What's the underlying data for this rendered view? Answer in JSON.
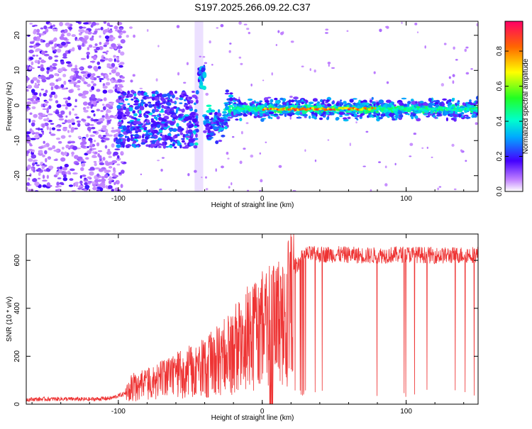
{
  "title": "S197.2025.266.09.22.C37",
  "chart_data": [
    {
      "type": "heatmap",
      "name": "spectrogram",
      "xlabel": "Height of straight line (km)",
      "ylabel": "Frequency (Hz)",
      "xlim": [
        -164,
        150
      ],
      "ylim": [
        -24.5,
        24
      ],
      "xticks": [
        -100,
        0,
        100
      ],
      "yticks": [
        -20,
        -10,
        0,
        10,
        20
      ],
      "xtick_labels": [
        "-100",
        "0",
        "100"
      ],
      "ytick_labels": [
        "-20",
        "-10",
        "0",
        "10",
        "20"
      ],
      "colorbar": {
        "label": "Normalized spectral amplitude",
        "range": [
          0,
          0.97
        ],
        "ticks": [
          0.0,
          0.2,
          0.4,
          0.6,
          0.8
        ],
        "tick_labels": [
          "0.0",
          "0.2",
          "0.4",
          "0.6",
          "0.8"
        ]
      },
      "features": {
        "noise_region_x": [
          -164,
          -100
        ],
        "band_center_hz": -1,
        "burst_x_km": -42,
        "burst_freq_hz": [
          5,
          11
        ],
        "peak_x_range_km": [
          0,
          80
        ]
      }
    },
    {
      "type": "line",
      "name": "snr",
      "xlabel": "Height of straight line (km)",
      "ylabel": "SNR (10 * v/v)",
      "xlim": [
        -164,
        150
      ],
      "ylim": [
        0,
        710
      ],
      "xticks": [
        -100,
        0,
        100
      ],
      "yticks": [
        0,
        200,
        400,
        600
      ],
      "xtick_labels": [
        "-100",
        "0",
        "100"
      ],
      "ytick_labels": [
        "0",
        "200",
        "400",
        "600"
      ],
      "color": "#ee3333",
      "series": [
        {
          "name": "SNR",
          "x": [
            -164,
            -140,
            -120,
            -105,
            -95,
            -90,
            -80,
            -70,
            -60,
            -50,
            -40,
            -30,
            -20,
            -10,
            0,
            10,
            18,
            22,
            30,
            50,
            75,
            100,
            125,
            150
          ],
          "y": [
            20,
            22,
            20,
            25,
            45,
            80,
            90,
            110,
            130,
            150,
            170,
            200,
            250,
            300,
            340,
            360,
            420,
            570,
            625,
            625,
            620,
            625,
            620,
            625
          ]
        }
      ]
    }
  ]
}
